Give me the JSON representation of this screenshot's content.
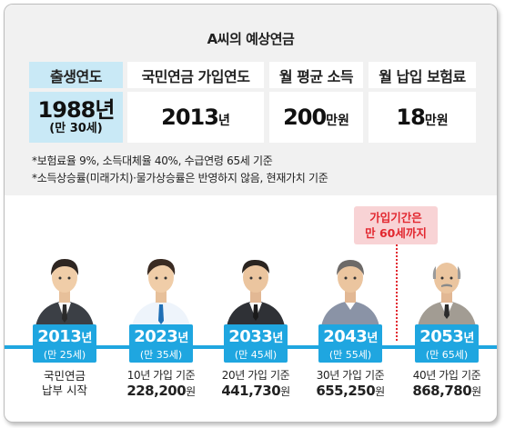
{
  "title": "A씨의 예상연금",
  "table": {
    "headers": [
      "출생연도",
      "국민연금 가입연도",
      "월 평균 소득",
      "월 납입 보험료"
    ],
    "birth_year": "1988",
    "birth_unit": "년",
    "birth_age": "(만 30세)",
    "join_year": "2013",
    "join_unit": "년",
    "income": "200",
    "income_unit": "만원",
    "premium": "18",
    "premium_unit": "만원"
  },
  "notes": [
    "*보험료율 9%, 소득대체율 40%, 수급연령 65세 기준",
    "*소득상승률(미래가치)·물가상승률은 반영하지 않음, 현재가치 기준"
  ],
  "callout": {
    "line1": "가입기간은",
    "line2": "만 60세까지"
  },
  "timeline": [
    {
      "year": "2013",
      "unit": "년",
      "age": "(만 25세)",
      "line1": "국민연금",
      "line2": "납부 시작"
    },
    {
      "year": "2023",
      "unit": "년",
      "age": "(만 35세)",
      "line1": "10년 가입 기준",
      "amount": "228,200",
      "amount_unit": "원"
    },
    {
      "year": "2033",
      "unit": "년",
      "age": "(만 45세)",
      "line1": "20년 가입 기준",
      "amount": "441,730",
      "amount_unit": "원"
    },
    {
      "year": "2043",
      "unit": "년",
      "age": "(만 55세)",
      "line1": "30년 가입 기준",
      "amount": "655,250",
      "amount_unit": "원"
    },
    {
      "year": "2053",
      "unit": "년",
      "age": "(만 65세)",
      "line1": "40년 가입 기준",
      "amount": "868,780",
      "amount_unit": "원"
    }
  ],
  "colors": {
    "accent_blue": "#1fa6e0",
    "highlight_cell": "#c9e9f6",
    "callout_red": "#e2272f",
    "callout_bg": "#f8d3d5"
  }
}
